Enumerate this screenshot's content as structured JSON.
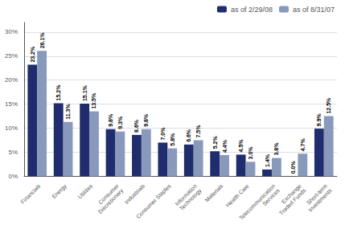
{
  "chart_data": {
    "type": "bar",
    "categories": [
      "Financials",
      "Energy",
      "Utilities",
      "Consumer\nDiscretionary",
      "Industrials",
      "Consumer Staples",
      "Information\nTechnology",
      "Materials",
      "Health Care",
      "Telecommunication\nServices",
      "Exchange\nTraded Funds",
      "Short-term\nInvestments"
    ],
    "series": [
      {
        "name": "as of 2/29/08",
        "color": "#1f2d6e",
        "values": [
          23.2,
          15.2,
          15.1,
          9.8,
          8.6,
          7.0,
          6.6,
          5.2,
          4.5,
          1.4,
          0.0,
          9.9
        ],
        "value_labels": [
          "23.2%",
          "15.2%",
          "15.1%",
          "9.8%",
          "8.6%",
          "7.0%",
          "6.6%",
          "5.2%",
          "4.5%",
          "1.4%",
          "0.0%",
          "9.9%"
        ]
      },
      {
        "name": "as of 8/31/07",
        "color": "#8899bb",
        "values": [
          26.1,
          11.3,
          13.5,
          9.3,
          9.8,
          5.8,
          7.5,
          4.4,
          3.0,
          3.8,
          4.7,
          12.5
        ],
        "value_labels": [
          "26.1%",
          "11.3%",
          "13.5%",
          "9.3%",
          "9.8%",
          "5.8%",
          "7.5%",
          "4.4%",
          "3.0%",
          "3.8%",
          "4.7%",
          "12.5%"
        ]
      }
    ],
    "ylim": [
      0,
      32
    ],
    "yticks": [
      {
        "value": 0,
        "label": "0%"
      },
      {
        "value": 5,
        "label": "5%"
      },
      {
        "value": 10,
        "label": "10%"
      },
      {
        "value": 15,
        "label": "15%"
      },
      {
        "value": 20,
        "label": "20%"
      },
      {
        "value": 25,
        "label": "25%"
      },
      {
        "value": 30,
        "label": "30%"
      }
    ],
    "grid": true,
    "legend": "top-right",
    "data_labels": true
  }
}
